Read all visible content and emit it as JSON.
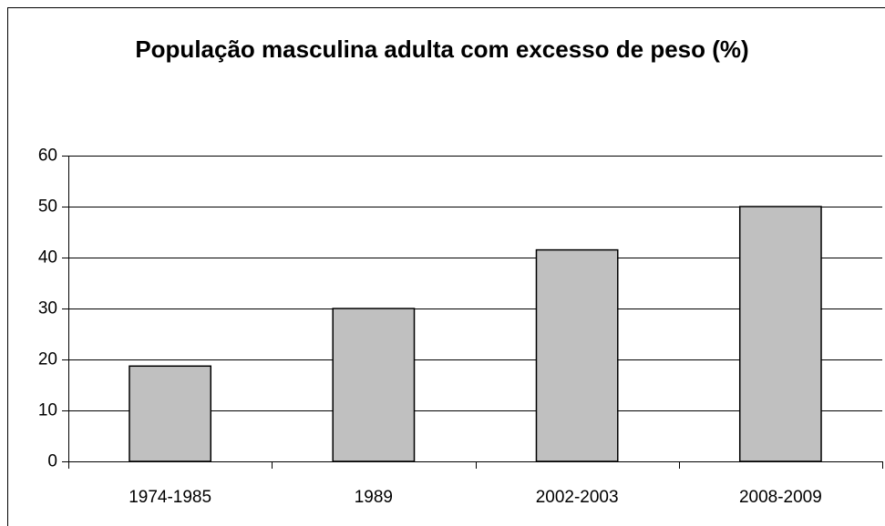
{
  "chart_data": {
    "type": "bar",
    "title": "População masculina adulta com excesso de peso (%)",
    "categories": [
      "1974-1985",
      "1989",
      "2002-2003",
      "2008-2009"
    ],
    "values": [
      18.7,
      30,
      41.5,
      50
    ],
    "color": "#c0c0c0",
    "ylim": [
      0,
      60
    ],
    "yticks": [
      0,
      10,
      20,
      30,
      40,
      50,
      60
    ],
    "grid": true
  }
}
